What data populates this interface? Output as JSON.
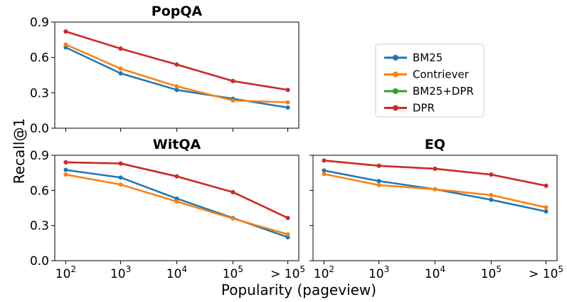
{
  "figure": {
    "ylabel": "Recall@1",
    "xlabel": "Popularity (pageview)"
  },
  "legend": {
    "entries": [
      {
        "name": "BM25",
        "color": "#1f77b4"
      },
      {
        "name": "Contriever",
        "color": "#ff7f0e"
      },
      {
        "name": "BM25+DPR",
        "color": "#2ca02c"
      },
      {
        "name": "DPR",
        "color": "#d62728"
      }
    ],
    "placement": "right"
  },
  "chart_data": [
    {
      "type": "line",
      "title": "PopQA",
      "categories": [
        "10^2",
        "10^3",
        "10^4",
        "10^5",
        "> 10^5"
      ],
      "ylim": [
        0,
        0.9
      ],
      "yticks": [
        "0.0",
        "0.3",
        "0.6",
        "0.9"
      ],
      "series": [
        {
          "name": "BM25",
          "color": "#1f77b4",
          "values": [
            0.685,
            0.465,
            0.325,
            0.25,
            0.175
          ]
        },
        {
          "name": "Contriever",
          "color": "#ff7f0e",
          "values": [
            0.71,
            0.505,
            0.355,
            0.235,
            0.22
          ]
        },
        {
          "name": "BM25+DPR",
          "color": "#2ca02c",
          "values": [
            0.82,
            0.675,
            0.54,
            0.4,
            0.325
          ]
        },
        {
          "name": "DPR",
          "color": "#d62728",
          "values": [
            0.82,
            0.675,
            0.54,
            0.4,
            0.325
          ]
        }
      ]
    },
    {
      "type": "line",
      "title": "WitQA",
      "categories": [
        "10^2",
        "10^3",
        "10^4",
        "10^5",
        "> 10^5"
      ],
      "ylim": [
        0,
        0.9
      ],
      "yticks": [
        "0.0",
        "0.3",
        "0.6",
        "0.9"
      ],
      "series": [
        {
          "name": "BM25",
          "color": "#1f77b4",
          "values": [
            0.775,
            0.71,
            0.53,
            0.365,
            0.2
          ]
        },
        {
          "name": "Contriever",
          "color": "#ff7f0e",
          "values": [
            0.735,
            0.65,
            0.505,
            0.36,
            0.225
          ]
        },
        {
          "name": "BM25+DPR",
          "color": "#2ca02c",
          "values": [
            0.84,
            0.83,
            0.72,
            0.585,
            0.365
          ]
        },
        {
          "name": "DPR",
          "color": "#d62728",
          "values": [
            0.84,
            0.83,
            0.72,
            0.585,
            0.365
          ]
        }
      ]
    },
    {
      "type": "line",
      "title": "EQ",
      "categories": [
        "10^2",
        "10^3",
        "10^4",
        "10^5",
        "> 10^5"
      ],
      "ylim": [
        0,
        0.9
      ],
      "yticks": [],
      "series": [
        {
          "name": "BM25",
          "color": "#1f77b4",
          "values": [
            0.77,
            0.68,
            0.61,
            0.52,
            0.42
          ]
        },
        {
          "name": "Contriever",
          "color": "#ff7f0e",
          "values": [
            0.74,
            0.645,
            0.61,
            0.56,
            0.455
          ]
        },
        {
          "name": "BM25+DPR",
          "color": "#2ca02c",
          "values": [
            0.855,
            0.81,
            0.785,
            0.735,
            0.64
          ]
        },
        {
          "name": "DPR",
          "color": "#d62728",
          "values": [
            0.855,
            0.81,
            0.785,
            0.735,
            0.64
          ]
        }
      ]
    }
  ]
}
